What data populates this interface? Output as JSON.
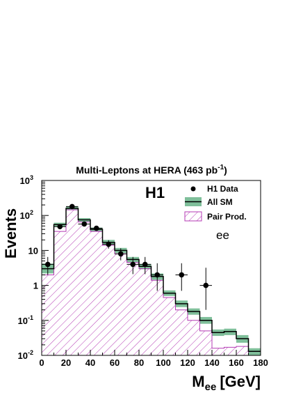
{
  "chart_data": {
    "type": "histogram",
    "title": "Multi-Leptons at HERA (463 pb",
    "title_sup": "-1",
    "title_close": ")",
    "experiment_label": "H1",
    "channel_label": "ee",
    "xlabel": "M",
    "xlabel_sub": "ee",
    "xlabel_unit": "[GeV]",
    "ylabel": "Events",
    "xlim": [
      0,
      180
    ],
    "ylim": [
      0.01,
      1000
    ],
    "yscale": "log",
    "x_ticks": [
      "0",
      "20",
      "40",
      "60",
      "80",
      "100",
      "120",
      "140",
      "160",
      "180"
    ],
    "y_ticks": [
      {
        "base": "10",
        "exp": "3",
        "value": 1000
      },
      {
        "base": "10",
        "exp": "2",
        "value": 100
      },
      {
        "base": "10",
        "exp": "",
        "value": 10
      },
      {
        "base": "1",
        "exp": "",
        "value": 1
      },
      {
        "base": "10",
        "exp": "-1",
        "value": 0.1
      },
      {
        "base": "10",
        "exp": "-2",
        "value": 0.01
      }
    ],
    "bin_edges": [
      0,
      10,
      20,
      30,
      40,
      50,
      60,
      70,
      80,
      90,
      100,
      110,
      120,
      130,
      140,
      150,
      160,
      170,
      180
    ],
    "all_sm": [
      3.0,
      55,
      160,
      75,
      40,
      17,
      10,
      5.5,
      3.5,
      1.8,
      0.6,
      0.3,
      0.18,
      0.1,
      0.045,
      0.048,
      0.03,
      0.013
    ],
    "all_sm_unc_low": [
      2.2,
      48,
      145,
      67,
      35,
      14.5,
      8.5,
      4.6,
      2.9,
      1.45,
      0.5,
      0.24,
      0.145,
      0.08,
      0.036,
      0.038,
      0.023,
      0.01
    ],
    "all_sm_unc_high": [
      4.2,
      62,
      178,
      84,
      45,
      20,
      11.8,
      6.5,
      4.1,
      2.2,
      0.72,
      0.37,
      0.22,
      0.125,
      0.055,
      0.058,
      0.038,
      0.016
    ],
    "pair_prod": [
      2.0,
      35,
      145,
      65,
      35,
      14,
      8,
      4.5,
      3.0,
      1.4,
      0.45,
      0.2,
      0.1,
      0.05,
      0.016,
      0.017,
      0.018,
      0.01
    ],
    "data": {
      "x": [
        5,
        15,
        25,
        35,
        45,
        55,
        65,
        75,
        85,
        95,
        115,
        135
      ],
      "y": [
        4,
        48,
        180,
        57,
        43,
        15,
        8,
        4,
        4,
        2,
        2,
        1
      ],
      "y_low": [
        2,
        41,
        167,
        50,
        37,
        11.3,
        5.2,
        2.1,
        2.1,
        0.7,
        0.7,
        0.2
      ],
      "y_high": [
        6.5,
        56,
        193,
        65,
        50,
        19.6,
        11.5,
        6.5,
        6.5,
        4.3,
        4.3,
        3.2
      ]
    },
    "legend": [
      {
        "label": "H1 Data",
        "kind": "marker"
      },
      {
        "label": "All SM",
        "kind": "band"
      },
      {
        "label": "Pair Prod.",
        "kind": "hatch"
      }
    ],
    "legend_position": "top-right",
    "colors": {
      "all_sm_band": "#7fbf9a",
      "all_sm_line": "#000000",
      "pair_prod": "#b43ab4",
      "data": "#000000"
    }
  }
}
